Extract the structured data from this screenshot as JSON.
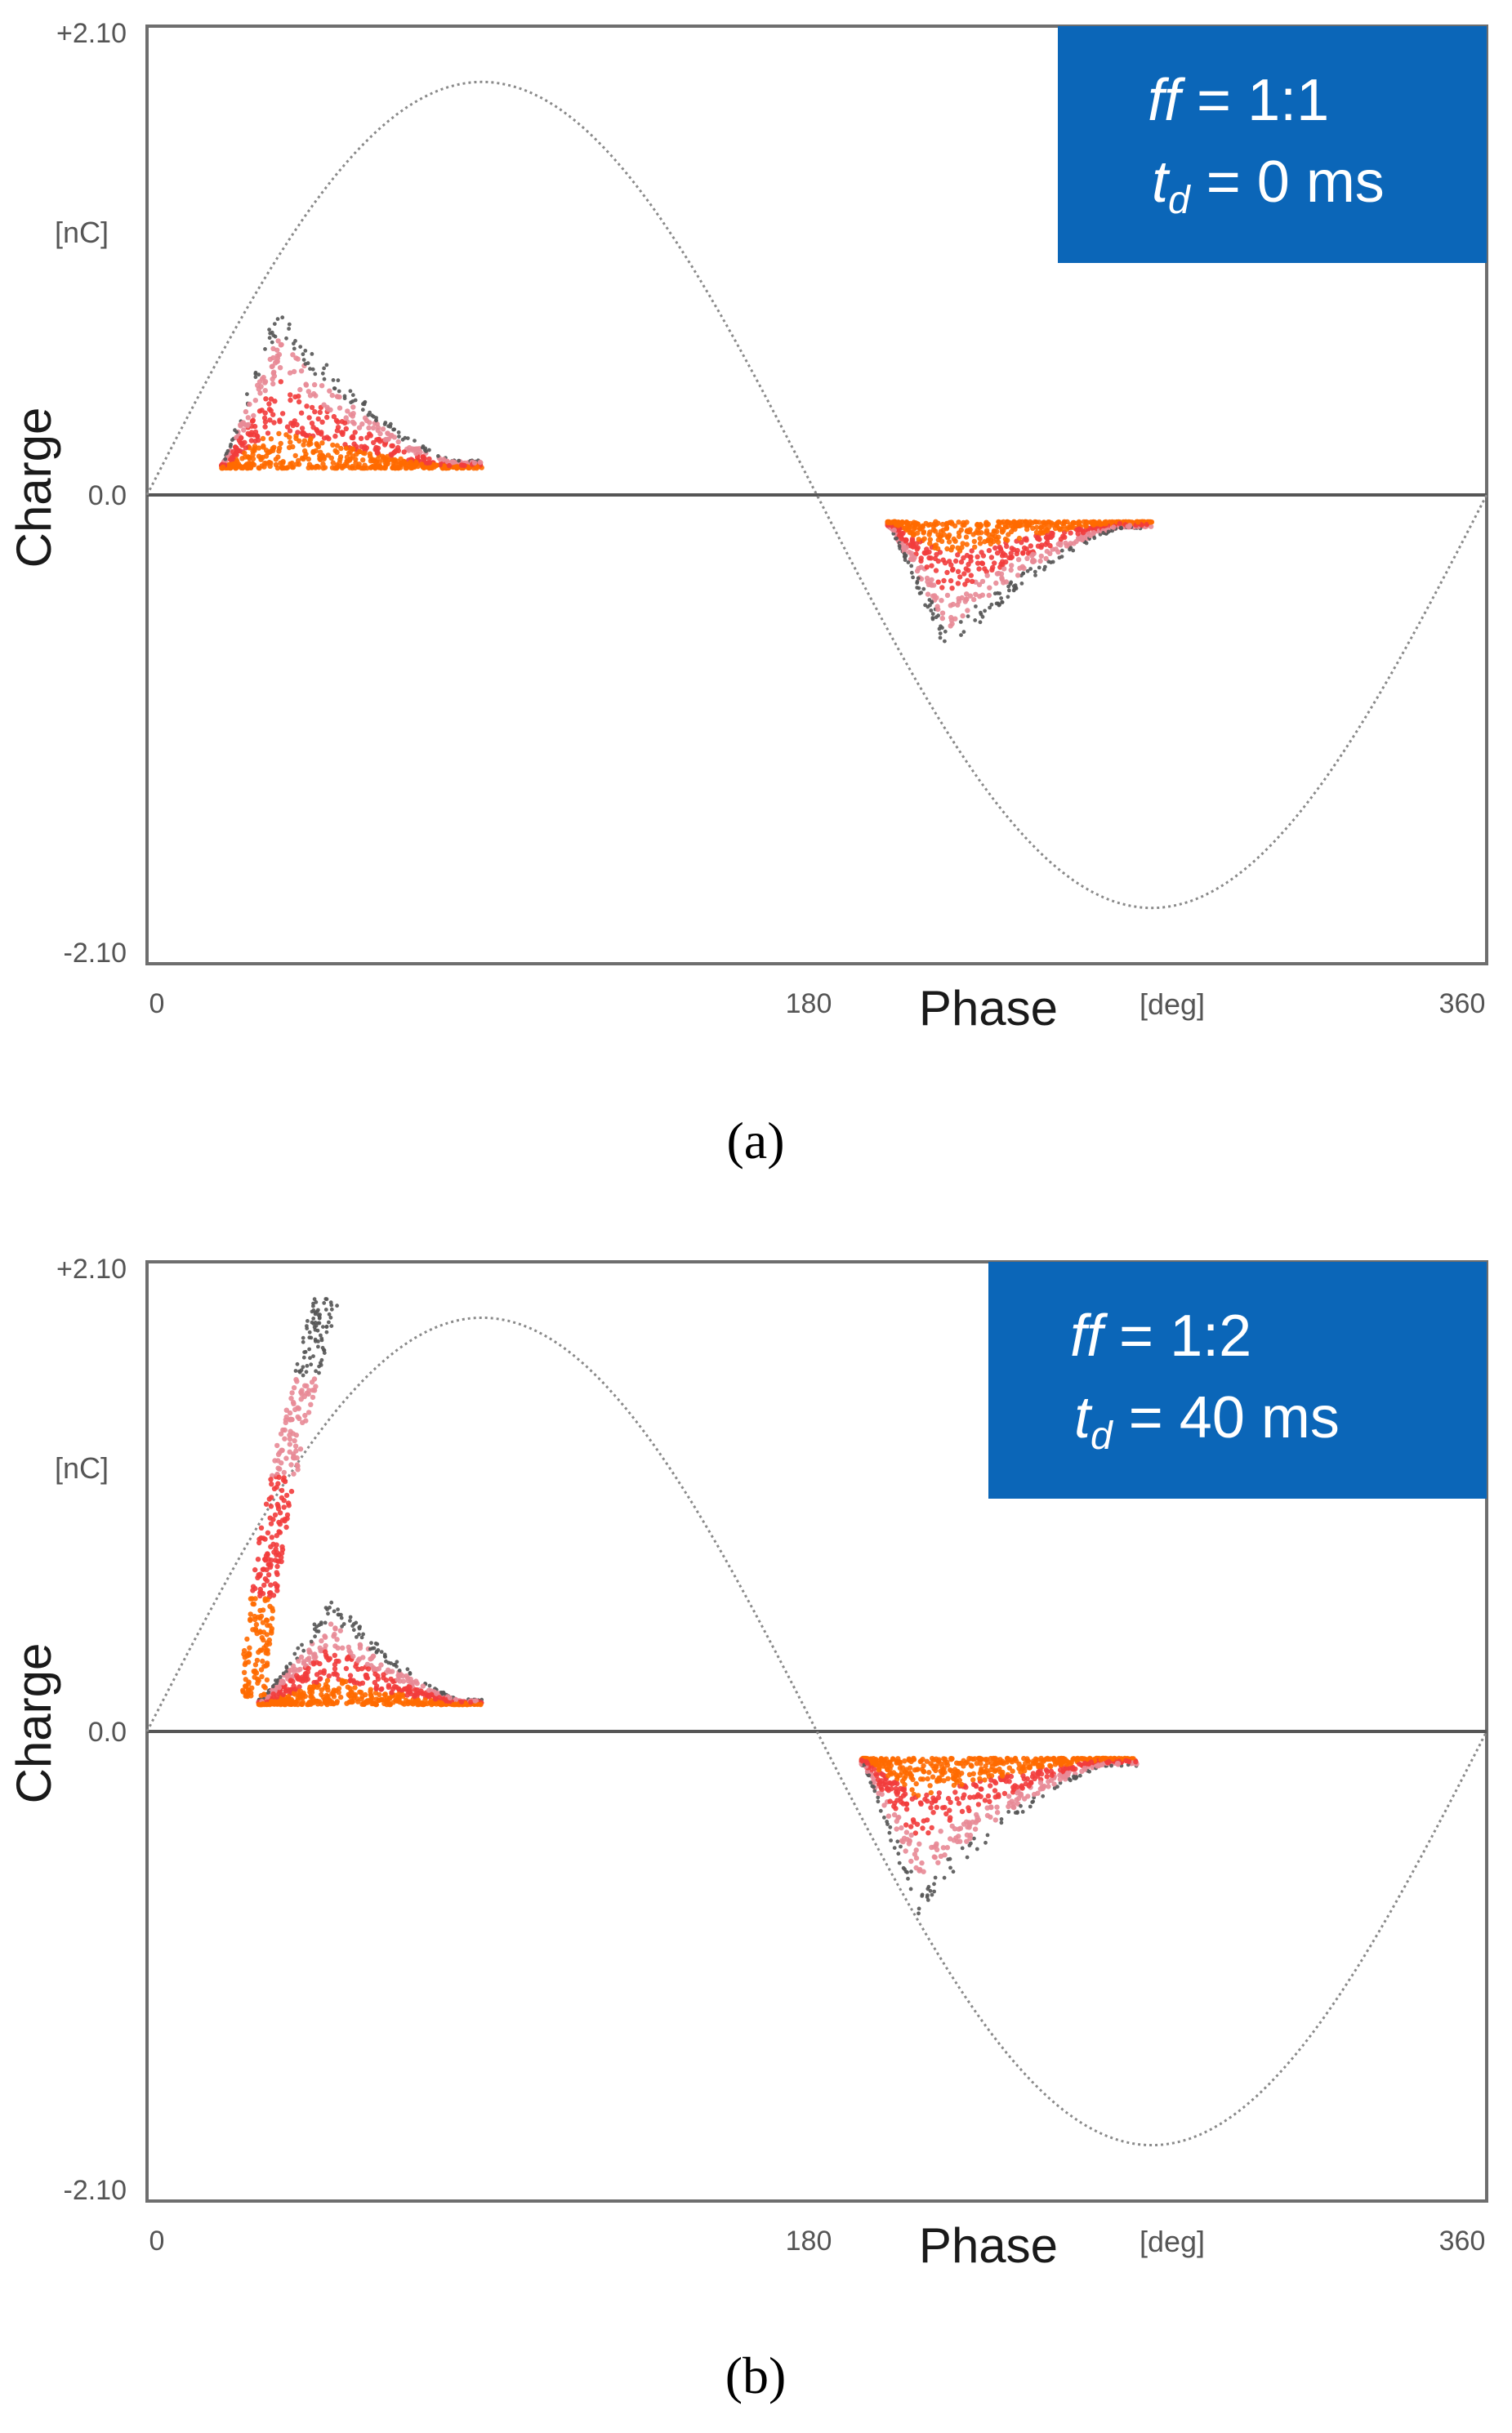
{
  "chart_data": [
    {
      "type": "scatter",
      "panel_label": "(a)",
      "xlabel": "Phase",
      "xunit": "[deg]",
      "ylabel": "Charge",
      "yunit": "[nC]",
      "xlim": [
        0,
        360
      ],
      "ylim": [
        -2.1,
        2.1
      ],
      "xticks": [
        "0",
        "180",
        "360"
      ],
      "yticks": [
        "+2.10",
        "0.0",
        "-2.10"
      ],
      "annotation": {
        "ff_label": "ff",
        "ff_value": "= 1:1",
        "td_label": "t",
        "td_sub": "d",
        "td_value": "= 0 ms"
      },
      "reference_wave": {
        "shape": "sine",
        "amplitude": 1.85,
        "period_deg": 360
      },
      "series": [
        {
          "name": "positive PD cluster",
          "phase_range": [
            20,
            90
          ],
          "peak_phase": 35,
          "peak_charge": 0.85,
          "base_charge": 0.12
        },
        {
          "name": "negative PD cluster",
          "phase_range": [
            199,
            270
          ],
          "peak_phase": 215,
          "peak_charge": -0.72,
          "base_charge": -0.12
        }
      ],
      "colors": {
        "legend_box": "#0b66b8",
        "dense": "#ff6a00",
        "medium": "#f23c3c",
        "sparse": "#e88a96",
        "outlier": "#555555"
      }
    },
    {
      "type": "scatter",
      "panel_label": "(b)",
      "xlabel": "Phase",
      "xunit": "[deg]",
      "ylabel": "Charge",
      "yunit": "[nC]",
      "xlim": [
        0,
        360
      ],
      "ylim": [
        -2.1,
        2.1
      ],
      "xticks": [
        "0",
        "180",
        "360"
      ],
      "yticks": [
        "+2.10",
        "0.0",
        "-2.10"
      ],
      "annotation": {
        "ff_label": "ff",
        "ff_value": "= 1:2",
        "td_label": "t",
        "td_sub": "d",
        "td_value": "= 40 ms"
      },
      "reference_wave": {
        "shape": "sine",
        "amplitude": 1.85,
        "period_deg": 360
      },
      "series": [
        {
          "name": "positive PD cluster",
          "phase_range": [
            30,
            90
          ],
          "peak_phase": 50,
          "peak_charge": 0.6,
          "base_charge": 0.12
        },
        {
          "name": "early high-charge PD",
          "phase_range": [
            27,
            60
          ],
          "peak_phase": 55,
          "peak_charge": 1.95,
          "base_charge": 0.15
        },
        {
          "name": "negative PD cluster",
          "phase_range": [
            192,
            266
          ],
          "peak_phase": 207,
          "peak_charge": -0.82,
          "base_charge": -0.12
        }
      ],
      "colors": {
        "legend_box": "#0b66b8",
        "dense": "#ff6a00",
        "medium": "#f23c3c",
        "sparse": "#e88a96",
        "outlier": "#555555"
      }
    }
  ]
}
